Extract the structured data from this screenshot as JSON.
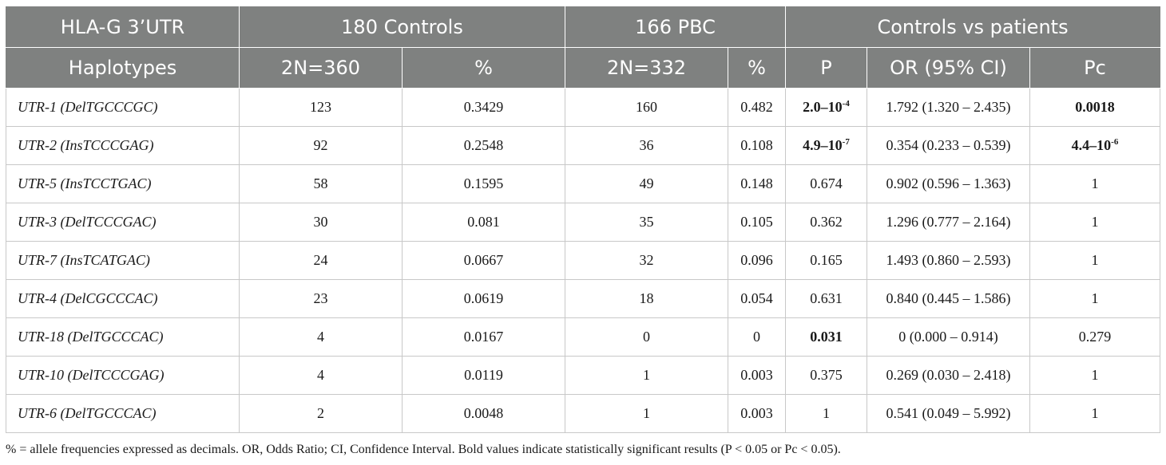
{
  "header": {
    "row1": {
      "col1": "HLA-G 3’UTR",
      "controls": "180 Controls",
      "pbc": "166 PBC",
      "comparison": "Controls vs patients"
    },
    "row2": {
      "col1": "Haplotypes",
      "controls_n": "2N=360",
      "controls_pct": "%",
      "pbc_n": "2N=332",
      "pbc_pct": "%",
      "p": "P",
      "or": "OR (95% CI)",
      "pc": "Pc"
    }
  },
  "rows": [
    {
      "haplotype": "UTR-1 (DelTGCCCGC)",
      "controls_n": "123",
      "controls_pct": "0.3429",
      "pbc_n": "160",
      "pbc_pct": "0.482",
      "p": {
        "base": "2.0–10",
        "exp": "-4"
      },
      "or": "1.792 (1.320 – 2.435)",
      "pc": {
        "base": "0.0018",
        "exp": ""
      }
    },
    {
      "haplotype": "UTR-2 (InsTCCCGAG)",
      "controls_n": "92",
      "controls_pct": "0.2548",
      "pbc_n": "36",
      "pbc_pct": "0.108",
      "p": {
        "base": "4.9–10",
        "exp": "-7"
      },
      "or": "0.354 (0.233 – 0.539)",
      "pc": {
        "base": "4.4–10",
        "exp": "-6"
      }
    },
    {
      "haplotype": "UTR-5 (InsTCCTGAC)",
      "controls_n": "58",
      "controls_pct": "0.1595",
      "pbc_n": "49",
      "pbc_pct": "0.148",
      "p": {
        "base": "0.674",
        "exp": ""
      },
      "or": "0.902 (0.596 – 1.363)",
      "pc": {
        "base": "1",
        "exp": ""
      }
    },
    {
      "haplotype": "UTR-3 (DelTCCCGAC)",
      "controls_n": "30",
      "controls_pct": "0.081",
      "pbc_n": "35",
      "pbc_pct": "0.105",
      "p": {
        "base": "0.362",
        "exp": ""
      },
      "or": "1.296 (0.777 – 2.164)",
      "pc": {
        "base": "1",
        "exp": ""
      }
    },
    {
      "haplotype": "UTR-7 (InsTCATGAC)",
      "controls_n": "24",
      "controls_pct": "0.0667",
      "pbc_n": "32",
      "pbc_pct": "0.096",
      "p": {
        "base": "0.165",
        "exp": ""
      },
      "or": "1.493 (0.860 – 2.593)",
      "pc": {
        "base": "1",
        "exp": ""
      }
    },
    {
      "haplotype": "UTR-4 (DelCGCCCAC)",
      "controls_n": "23",
      "controls_pct": "0.0619",
      "pbc_n": "18",
      "pbc_pct": "0.054",
      "p": {
        "base": "0.631",
        "exp": ""
      },
      "or": "0.840 (0.445 – 1.586)",
      "pc": {
        "base": "1",
        "exp": ""
      }
    },
    {
      "haplotype": "UTR-18 (DelTGCCCAC)",
      "controls_n": "4",
      "controls_pct": "0.0167",
      "pbc_n": "0",
      "pbc_pct": "0",
      "p": {
        "base": "0.031",
        "exp": ""
      },
      "or": "0 (0.000 – 0.914)",
      "pc": {
        "base": "0.279",
        "exp": ""
      }
    },
    {
      "haplotype": "UTR-10 (DelTCCCGAG)",
      "controls_n": "4",
      "controls_pct": "0.0119",
      "pbc_n": "1",
      "pbc_pct": "0.003",
      "p": {
        "base": "0.375",
        "exp": ""
      },
      "or": "0.269 (0.030 – 2.418)",
      "pc": {
        "base": "1",
        "exp": ""
      }
    },
    {
      "haplotype": "UTR-6 (DelTGCCCAC)",
      "controls_n": "2",
      "controls_pct": "0.0048",
      "pbc_n": "1",
      "pbc_pct": "0.003",
      "p": {
        "base": "1",
        "exp": ""
      },
      "or": "0.541 (0.049 – 5.992)",
      "pc": {
        "base": "1",
        "exp": ""
      }
    }
  ],
  "bold_cells": {
    "p": [
      true,
      true,
      false,
      false,
      false,
      false,
      true,
      false,
      false
    ],
    "pc": [
      true,
      true,
      false,
      false,
      false,
      false,
      false,
      false,
      false
    ]
  },
  "footnote": "% = allele frequencies expressed as decimals. OR, Odds Ratio; CI, Confidence Interval. Bold values indicate statistically significant results (P < 0.05 or Pc < 0.05).",
  "colors": {
    "header_bg": "#7f8180",
    "header_text": "#ffffff",
    "grid": "#c8c8c8"
  }
}
